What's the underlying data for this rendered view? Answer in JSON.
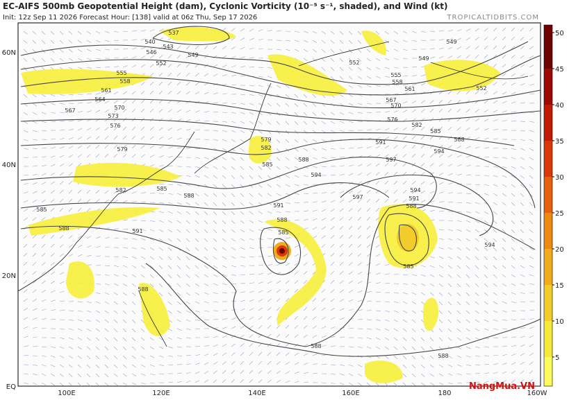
{
  "header": {
    "title": "EC-AIFS 500mb Geopotential Height (dam), Cyclonic Vorticity (10⁻⁵ s⁻¹, shaded), and Wind (kt)",
    "subtitle": "Init: 12z Sep 11 2026   Forecast Hour: [138]   valid at 06z Thu, Sep 17 2026",
    "site": "TROPICALTIDBITS.COM"
  },
  "map": {
    "lon_labels": [
      "100E",
      "120E",
      "140E",
      "160E",
      "180",
      "160W"
    ],
    "lat_labels": [
      "60N",
      "40N",
      "20N",
      "EQ"
    ],
    "contour_labels": [
      "537",
      "540",
      "543",
      "546",
      "549",
      "552",
      "555",
      "558",
      "561",
      "564",
      "567",
      "570",
      "573",
      "576",
      "579",
      "582",
      "585",
      "588",
      "591",
      "585",
      "588",
      "594",
      "597",
      "591",
      "594",
      "588",
      "585",
      "582",
      "576",
      "570",
      "567",
      "561",
      "558",
      "555",
      "552",
      "549",
      "552",
      "549",
      "594",
      "591",
      "588",
      "585",
      "597",
      "594",
      "588",
      "588",
      "588",
      "591",
      "588",
      "585",
      "582",
      "579",
      "585",
      "588"
    ]
  },
  "colorbar": {
    "ticks": [
      5,
      10,
      15,
      20,
      25,
      30,
      35,
      40,
      45,
      50
    ],
    "colors": [
      "#fbfb5e",
      "#f5e83c",
      "#f2cc2a",
      "#f0ab1e",
      "#ec8a14",
      "#e5600e",
      "#d9380a",
      "#c11a06",
      "#9c0a04",
      "#6e0402"
    ]
  },
  "watermark": "NangMua.VN"
}
